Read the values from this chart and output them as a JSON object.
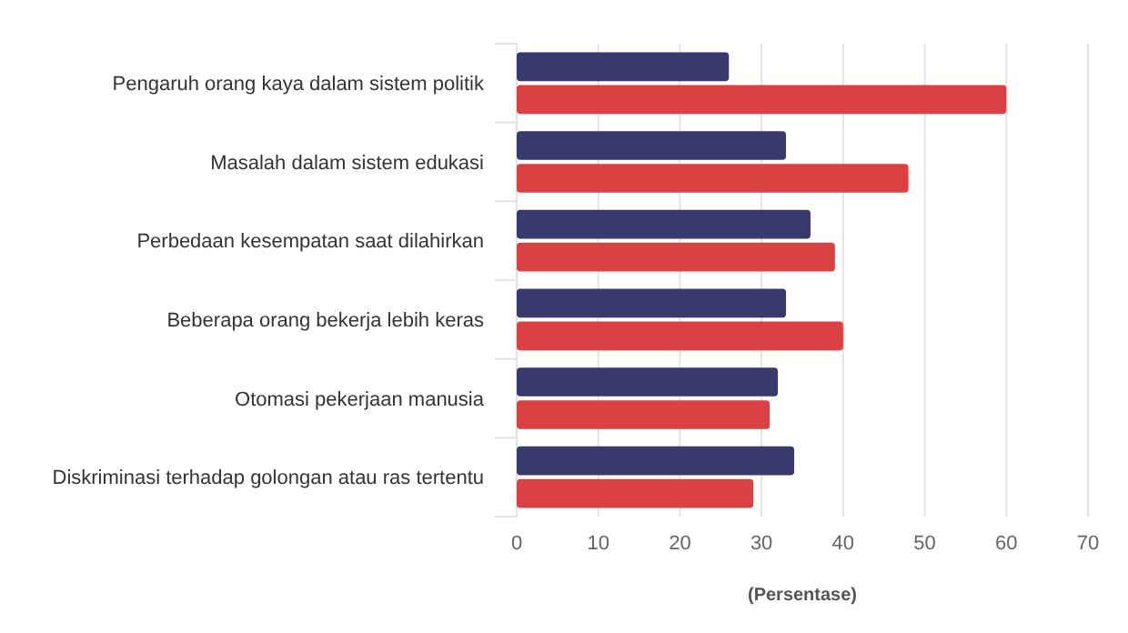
{
  "chart_data": {
    "type": "bar",
    "orientation": "horizontal",
    "xlabel": "(Persentase)",
    "categories": [
      "Pengaruh orang kaya dalam sistem politik",
      "Masalah dalam sistem edukasi",
      "Perbedaan kesempatan saat dilahirkan",
      "Beberapa orang bekerja lebih keras",
      "Otomasi pekerjaan manusia",
      "Diskriminasi terhadap golongan atau ras tertentu"
    ],
    "series": [
      {
        "color": "#383a6e",
        "values": [
          26,
          33,
          36,
          33,
          32,
          34
        ]
      },
      {
        "color": "#db4042",
        "values": [
          60,
          48,
          39,
          40,
          31,
          29
        ]
      }
    ],
    "xlim": [
      0,
      70
    ],
    "xticks": [
      0,
      10,
      20,
      30,
      40,
      50,
      60,
      70
    ],
    "grid": "x"
  }
}
